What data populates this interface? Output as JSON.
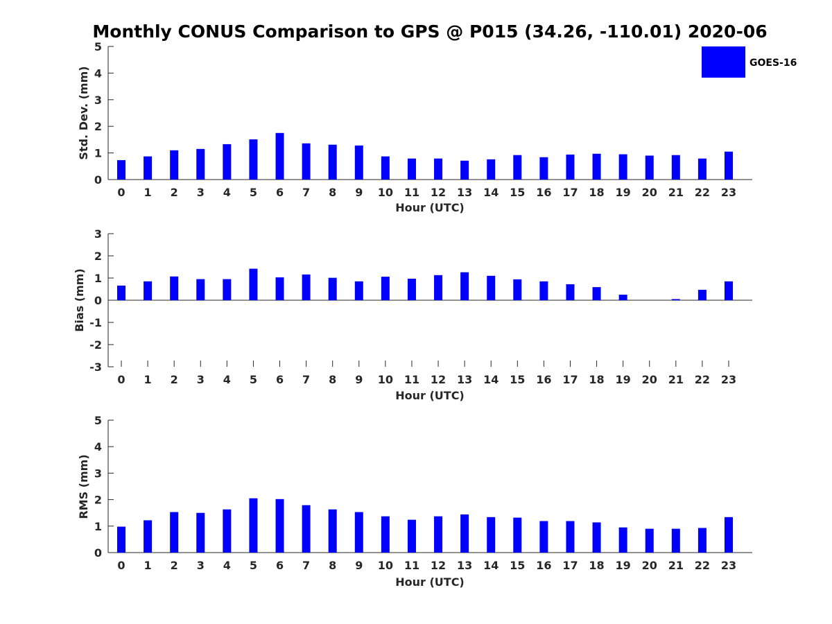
{
  "figure": {
    "title": "Monthly CONUS Comparison to GPS @ P015 (34.26, -110.01) 2020-06"
  },
  "legend": {
    "label": "GOES-16",
    "color": "#0000ff"
  },
  "chart_data": [
    {
      "type": "bar",
      "xlabel": "Hour (UTC)",
      "ylabel": "Std. Dev. (mm)",
      "ylim": [
        0,
        5
      ],
      "yticks": [
        "0",
        "1",
        "2",
        "3",
        "4",
        "5"
      ],
      "categories": [
        "0",
        "1",
        "2",
        "3",
        "4",
        "5",
        "6",
        "7",
        "8",
        "9",
        "10",
        "11",
        "12",
        "13",
        "14",
        "15",
        "16",
        "17",
        "18",
        "19",
        "20",
        "21",
        "22",
        "23"
      ],
      "series": [
        {
          "name": "GOES-16",
          "color": "#0000ff",
          "values": [
            0.73,
            0.87,
            1.1,
            1.15,
            1.33,
            1.51,
            1.75,
            1.36,
            1.31,
            1.28,
            0.87,
            0.79,
            0.79,
            0.71,
            0.76,
            0.92,
            0.84,
            0.94,
            0.97,
            0.95,
            0.9,
            0.92,
            0.79,
            1.05
          ]
        }
      ]
    },
    {
      "type": "bar",
      "xlabel": "Hour (UTC)",
      "ylabel": "Bias (mm)",
      "ylim": [
        -3,
        3
      ],
      "yticks": [
        "-3",
        "-2",
        "-1",
        "0",
        "1",
        "2",
        "3"
      ],
      "categories": [
        "0",
        "1",
        "2",
        "3",
        "4",
        "5",
        "6",
        "7",
        "8",
        "9",
        "10",
        "11",
        "12",
        "13",
        "14",
        "15",
        "16",
        "17",
        "18",
        "19",
        "20",
        "21",
        "22",
        "23"
      ],
      "series": [
        {
          "name": "GOES-16",
          "color": "#0000ff",
          "values": [
            0.66,
            0.85,
            1.07,
            0.95,
            0.95,
            1.42,
            1.03,
            1.16,
            1.01,
            0.85,
            1.06,
            0.97,
            1.13,
            1.26,
            1.1,
            0.94,
            0.85,
            0.72,
            0.59,
            0.25,
            0.0,
            0.05,
            0.47,
            0.85
          ]
        }
      ]
    },
    {
      "type": "bar",
      "xlabel": "Hour (UTC)",
      "ylabel": "RMS (mm)",
      "ylim": [
        0,
        5
      ],
      "yticks": [
        "0",
        "1",
        "2",
        "3",
        "4",
        "5"
      ],
      "categories": [
        "0",
        "1",
        "2",
        "3",
        "4",
        "5",
        "6",
        "7",
        "8",
        "9",
        "10",
        "11",
        "12",
        "13",
        "14",
        "15",
        "16",
        "17",
        "18",
        "19",
        "20",
        "21",
        "22",
        "23"
      ],
      "series": [
        {
          "name": "GOES-16",
          "color": "#0000ff",
          "values": [
            0.98,
            1.22,
            1.53,
            1.5,
            1.63,
            2.05,
            2.02,
            1.79,
            1.63,
            1.53,
            1.37,
            1.24,
            1.37,
            1.44,
            1.34,
            1.32,
            1.19,
            1.19,
            1.14,
            0.95,
            0.9,
            0.9,
            0.93,
            1.34
          ]
        }
      ]
    }
  ]
}
